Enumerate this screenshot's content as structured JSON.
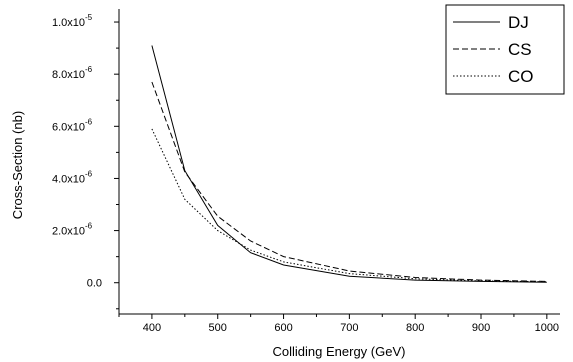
{
  "chart_data": {
    "type": "line",
    "title": "",
    "xlabel": "Colliding Energy (GeV)",
    "ylabel": "Cross-Section (nb)",
    "xlim": [
      350,
      1020
    ],
    "ylim": [
      -1.2e-06,
      1.05e-05
    ],
    "grid": false,
    "legend_position": "top-right",
    "x_ticks": [
      {
        "value": 400,
        "label": "400"
      },
      {
        "value": 500,
        "label": "500"
      },
      {
        "value": 600,
        "label": "600"
      },
      {
        "value": 700,
        "label": "700"
      },
      {
        "value": 800,
        "label": "800"
      },
      {
        "value": 900,
        "label": "900"
      },
      {
        "value": 1000,
        "label": "1000"
      }
    ],
    "y_ticks": [
      {
        "value": 0,
        "label": "0.0",
        "exp": ""
      },
      {
        "value": 2e-06,
        "label": "2.0x10",
        "exp": "-6"
      },
      {
        "value": 4e-06,
        "label": "4.0x10",
        "exp": "-6"
      },
      {
        "value": 6e-06,
        "label": "6.0x10",
        "exp": "-6"
      },
      {
        "value": 8e-06,
        "label": "8.0x10",
        "exp": "-6"
      },
      {
        "value": 1e-05,
        "label": "1.0x10",
        "exp": "-5"
      }
    ],
    "x": [
      400,
      450,
      500,
      550,
      600,
      700,
      800,
      900,
      1000
    ],
    "series": [
      {
        "name": "DJ",
        "style": "solid",
        "values": [
          9.1e-06,
          4.3e-06,
          2.2e-06,
          1.15e-06,
          6.8e-07,
          2.5e-07,
          1e-07,
          5e-08,
          2e-08
        ]
      },
      {
        "name": "CS",
        "style": "dashed",
        "values": [
          7.7e-06,
          4.25e-06,
          2.55e-06,
          1.6e-06,
          1e-06,
          4.5e-07,
          2e-07,
          1e-07,
          5e-08
        ]
      },
      {
        "name": "CO",
        "style": "dotted",
        "values": [
          5.9e-06,
          3.2e-06,
          2e-06,
          1.25e-06,
          8e-07,
          3.5e-07,
          1.5e-07,
          7e-08,
          4e-08
        ]
      }
    ]
  }
}
